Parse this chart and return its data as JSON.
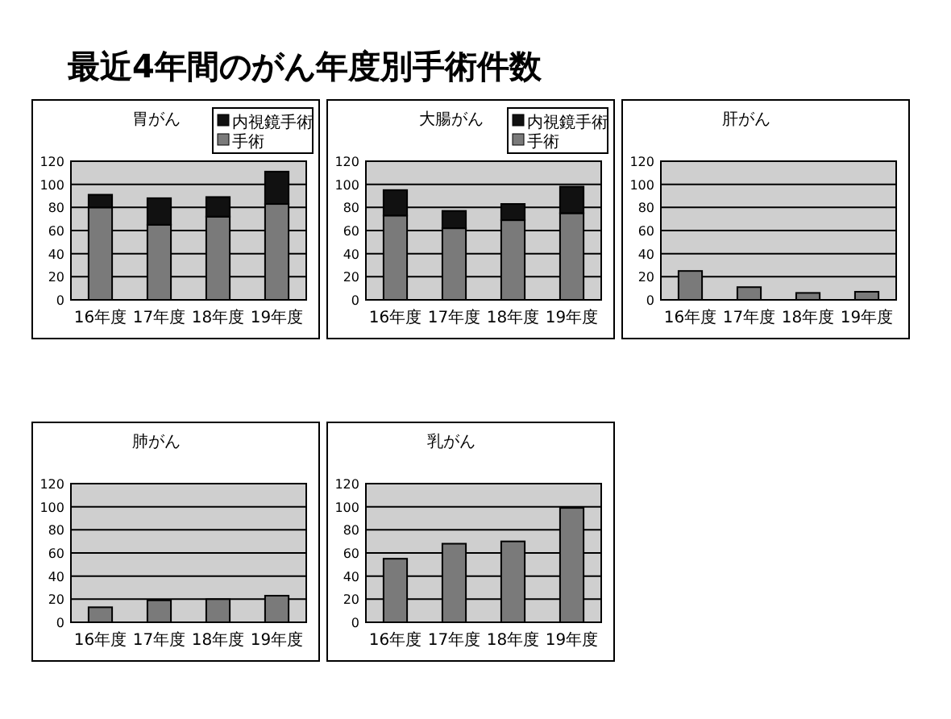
{
  "chart_data": [
    {
      "type": "other",
      "title": "最近4年間のがん年度別手術件数"
    },
    {
      "type": "bar",
      "title": "胃がん",
      "categories": [
        "16年度",
        "17年度",
        "18年度",
        "19年度"
      ],
      "stacked": true,
      "series": [
        {
          "name": "手術",
          "color": "#7a7a7a",
          "values": [
            80,
            65,
            72,
            83
          ]
        },
        {
          "name": "内視鏡手術",
          "color": "#111111",
          "values": [
            11,
            23,
            17,
            28
          ]
        }
      ],
      "ylim": [
        0,
        120
      ],
      "yticks": [
        0,
        20,
        40,
        60,
        80,
        100,
        120
      ],
      "grid": "y",
      "legend": "top right"
    },
    {
      "type": "bar",
      "title": "大腸がん",
      "categories": [
        "16年度",
        "17年度",
        "18年度",
        "19年度"
      ],
      "stacked": true,
      "series": [
        {
          "name": "手術",
          "color": "#7a7a7a",
          "values": [
            73,
            62,
            69,
            75
          ]
        },
        {
          "name": "内視鏡手術",
          "color": "#111111",
          "values": [
            22,
            15,
            14,
            23
          ]
        }
      ],
      "ylim": [
        0,
        120
      ],
      "yticks": [
        0,
        20,
        40,
        60,
        80,
        100,
        120
      ],
      "grid": "y",
      "legend": "top right"
    },
    {
      "type": "bar",
      "title": "肝がん",
      "categories": [
        "16年度",
        "17年度",
        "18年度",
        "19年度"
      ],
      "color": "#7a7a7a",
      "values": [
        25,
        11,
        6,
        7
      ],
      "ylim": [
        0,
        120
      ],
      "yticks": [
        0,
        20,
        40,
        60,
        80,
        100,
        120
      ],
      "grid": "y"
    },
    {
      "type": "bar",
      "title": "肺がん",
      "categories": [
        "16年度",
        "17年度",
        "18年度",
        "19年度"
      ],
      "color": "#7a7a7a",
      "values": [
        13,
        19,
        20,
        23
      ],
      "ylim": [
        0,
        120
      ],
      "yticks": [
        0,
        20,
        40,
        60,
        80,
        100,
        120
      ],
      "grid": "y"
    },
    {
      "type": "bar",
      "title": "乳がん",
      "categories": [
        "16年度",
        "17年度",
        "18年度",
        "19年度"
      ],
      "color": "#7a7a7a",
      "values": [
        55,
        68,
        70,
        99
      ],
      "ylim": [
        0,
        120
      ],
      "yticks": [
        0,
        20,
        40,
        60,
        80,
        100,
        120
      ],
      "grid": "y"
    }
  ]
}
